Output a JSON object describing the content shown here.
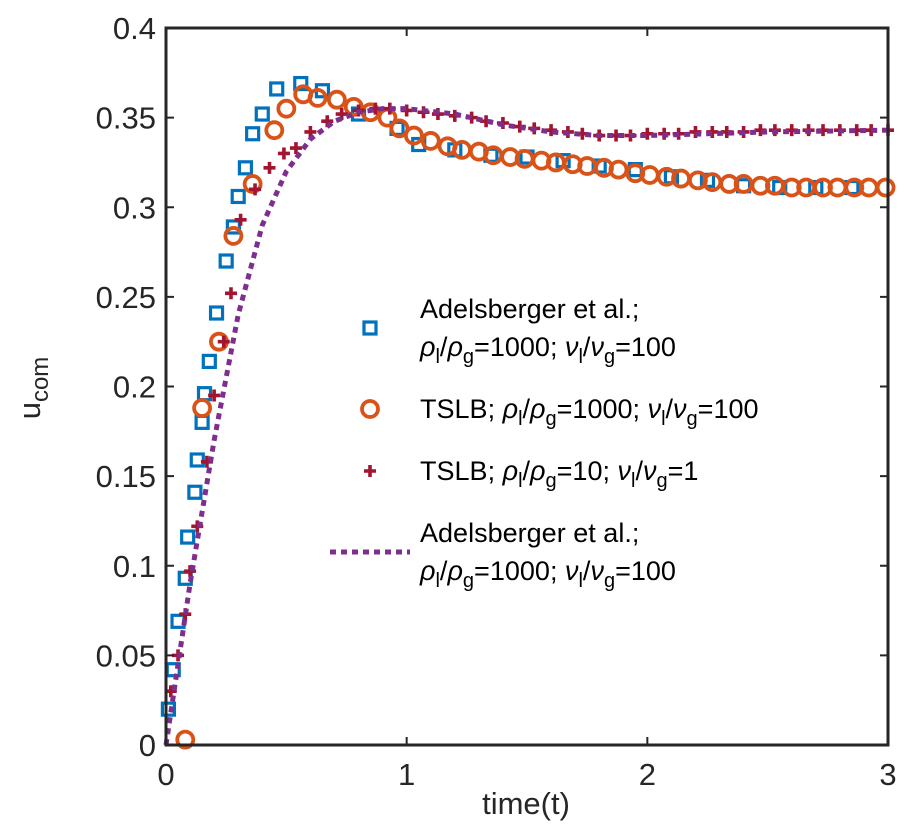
{
  "chart_data": {
    "type": "scatter",
    "xlabel": "time(t)",
    "ylabel": {
      "base": "u",
      "sub": "com"
    },
    "xlim": [
      0,
      3
    ],
    "xticks": [
      0,
      1,
      2,
      3
    ],
    "ylim": [
      0,
      0.4
    ],
    "yticks": [
      0,
      0.05,
      0.1,
      0.15,
      0.2,
      0.25,
      0.3,
      0.35,
      0.4
    ],
    "grid": false,
    "series": [
      {
        "name": "Adelsberger et al.;\nρl/ρg=1000; νl/νg=100",
        "color": "#0072BD",
        "marker": "square",
        "x": [
          0.01,
          0.03,
          0.05,
          0.08,
          0.09,
          0.12,
          0.13,
          0.15,
          0.16,
          0.18,
          0.21,
          0.25,
          0.28,
          0.3,
          0.33,
          0.36,
          0.4,
          0.46,
          0.56,
          0.65,
          0.8,
          0.96,
          1.05,
          1.2,
          1.35,
          1.5,
          1.65,
          1.8,
          1.95,
          2.1,
          2.25,
          2.4,
          2.55,
          2.7,
          2.85
        ],
        "values": [
          0.02,
          0.042,
          0.069,
          0.093,
          0.116,
          0.141,
          0.159,
          0.18,
          0.196,
          0.214,
          0.241,
          0.27,
          0.289,
          0.306,
          0.322,
          0.341,
          0.352,
          0.366,
          0.369,
          0.365,
          0.352,
          0.344,
          0.335,
          0.332,
          0.329,
          0.328,
          0.326,
          0.323,
          0.321,
          0.317,
          0.315,
          0.312,
          0.311,
          0.311,
          0.311
        ]
      },
      {
        "name": "TSLB; ρl/ρg=1000; νl/νg=100",
        "color": "#D95319",
        "marker": "circle",
        "x": [
          0.08,
          0.15,
          0.22,
          0.28,
          0.36,
          0.45,
          0.5,
          0.57,
          0.63,
          0.71,
          0.78,
          0.85,
          0.92,
          0.97,
          1.03,
          1.1,
          1.17,
          1.23,
          1.3,
          1.36,
          1.43,
          1.49,
          1.56,
          1.62,
          1.69,
          1.75,
          1.82,
          1.88,
          1.95,
          2.01,
          2.08,
          2.14,
          2.21,
          2.27,
          2.34,
          2.4,
          2.47,
          2.53,
          2.6,
          2.66,
          2.73,
          2.79,
          2.86,
          2.92,
          2.99
        ],
        "values": [
          0.003,
          0.188,
          0.225,
          0.284,
          0.313,
          0.343,
          0.355,
          0.363,
          0.361,
          0.36,
          0.356,
          0.353,
          0.35,
          0.344,
          0.34,
          0.337,
          0.334,
          0.332,
          0.331,
          0.329,
          0.328,
          0.327,
          0.326,
          0.325,
          0.324,
          0.323,
          0.322,
          0.321,
          0.319,
          0.318,
          0.317,
          0.316,
          0.315,
          0.314,
          0.313,
          0.313,
          0.312,
          0.312,
          0.311,
          0.311,
          0.311,
          0.311,
          0.311,
          0.311,
          0.311
        ]
      },
      {
        "name": "TSLB; ρl/ρg=10; νl/νg=1",
        "color": "#A2142F",
        "marker": "plus",
        "x": [
          0.02,
          0.05,
          0.08,
          0.1,
          0.13,
          0.17,
          0.2,
          0.24,
          0.27,
          0.31,
          0.37,
          0.43,
          0.49,
          0.54,
          0.6,
          0.67,
          0.73,
          0.8,
          0.87,
          0.93,
          1.0,
          1.07,
          1.13,
          1.2,
          1.27,
          1.33,
          1.4,
          1.47,
          1.53,
          1.6,
          1.67,
          1.73,
          1.8,
          1.87,
          1.93,
          2.0,
          2.07,
          2.13,
          2.2,
          2.27,
          2.33,
          2.4,
          2.47,
          2.53,
          2.6,
          2.67,
          2.73,
          2.8,
          2.87,
          2.93,
          3.0
        ],
        "values": [
          0.03,
          0.05,
          0.073,
          0.097,
          0.122,
          0.158,
          0.195,
          0.225,
          0.252,
          0.293,
          0.31,
          0.322,
          0.33,
          0.333,
          0.342,
          0.348,
          0.352,
          0.354,
          0.355,
          0.355,
          0.354,
          0.353,
          0.352,
          0.351,
          0.35,
          0.348,
          0.347,
          0.345,
          0.344,
          0.343,
          0.342,
          0.341,
          0.34,
          0.34,
          0.34,
          0.341,
          0.341,
          0.341,
          0.342,
          0.342,
          0.342,
          0.342,
          0.343,
          0.343,
          0.343,
          0.343,
          0.343,
          0.343,
          0.343,
          0.343,
          0.343
        ]
      },
      {
        "name": "Adelsberger et al.;\nρl/ρg=1000; νl/νg=100",
        "color": "#7E2F8E",
        "marker": "none",
        "linestyle": "dotted",
        "x": [
          0,
          0.1,
          0.2,
          0.3,
          0.4,
          0.5,
          0.6,
          0.7,
          0.8,
          0.9,
          1.0,
          1.2,
          1.4,
          1.6,
          1.8,
          2.0,
          2.5,
          3.0
        ],
        "values": [
          0,
          0.09,
          0.17,
          0.24,
          0.29,
          0.32,
          0.338,
          0.348,
          0.353,
          0.355,
          0.355,
          0.352,
          0.346,
          0.342,
          0.34,
          0.34,
          0.342,
          0.343
        ]
      }
    ]
  }
}
